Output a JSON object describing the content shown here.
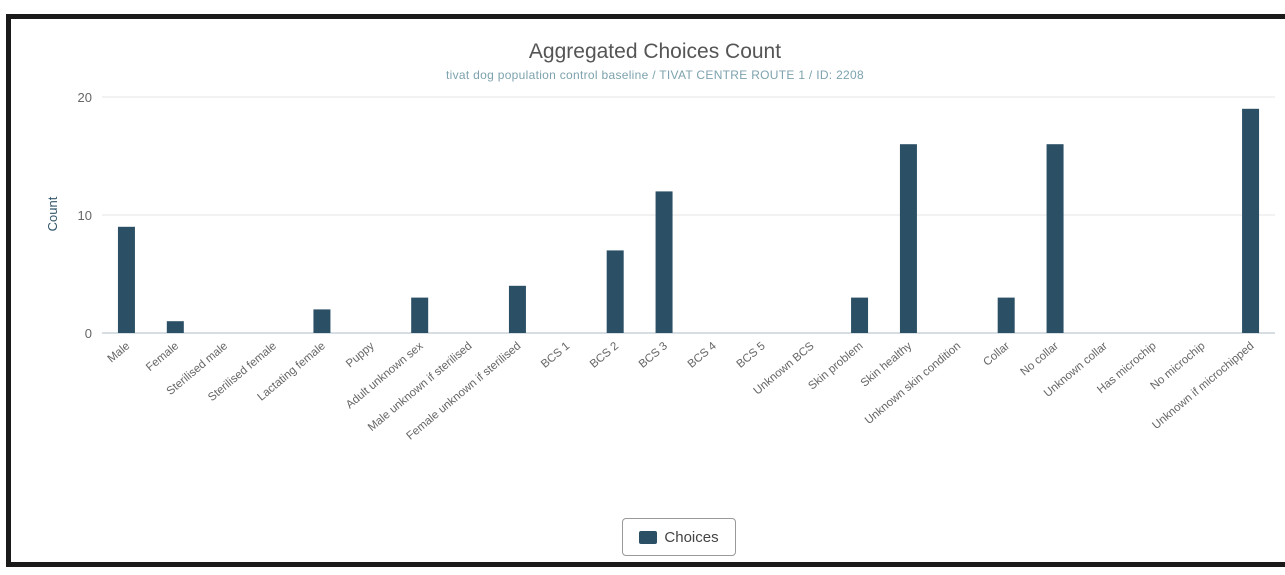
{
  "chart_data": {
    "type": "bar",
    "title": "Aggregated Choices Count",
    "subtitle": "tivat dog population control baseline / TIVAT CENTRE ROUTE 1 / ID: 2208",
    "ylabel": "Count",
    "xlabel": "",
    "ylim": [
      0,
      20
    ],
    "yticks": [
      "0",
      "10",
      "20"
    ],
    "grid": true,
    "legend_position": "bottom-center",
    "bar_color": "#2b5066",
    "categories": [
      "Male",
      "Female",
      "Sterilised male",
      "Sterilised female",
      "Lactating female",
      "Puppy",
      "Adult unknown sex",
      "Male unknown if sterilised",
      "Female unknown if sterilised",
      "BCS 1",
      "BCS 2",
      "BCS 3",
      "BCS 4",
      "BCS 5",
      "Unknown BCS",
      "Skin problem",
      "Skin healthy",
      "Unknown skin condition",
      "Collar",
      "No collar",
      "Unknown collar",
      "Has microchip",
      "No microchip",
      "Unknown if microchipped"
    ],
    "series": [
      {
        "name": "Choices",
        "values": [
          9,
          1,
          0,
          0,
          2,
          0,
          3,
          0,
          4,
          0,
          7,
          12,
          0,
          0,
          0,
          3,
          16,
          0,
          3,
          16,
          0,
          0,
          0,
          19
        ]
      }
    ]
  }
}
